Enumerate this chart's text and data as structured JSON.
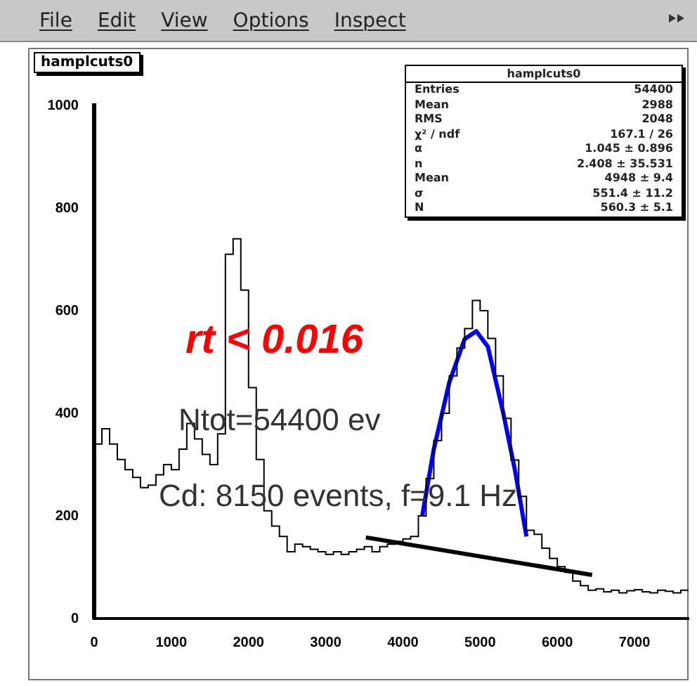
{
  "chart_data": {
    "type": "histogram",
    "title": "hamplcuts0",
    "bins": [
      0,
      100,
      200,
      300,
      400,
      500,
      600,
      700,
      800,
      900,
      1000,
      1100,
      1200,
      1300,
      1400,
      1500,
      1600,
      1700,
      1800,
      1900,
      2000,
      2100,
      2200,
      2300,
      2400,
      2500,
      2600,
      2700,
      2800,
      2900,
      3000,
      3100,
      3200,
      3300,
      3400,
      3500,
      3600,
      3700,
      3800,
      3900,
      4000,
      4100,
      4200,
      4300,
      4400,
      4500,
      4600,
      4700,
      4800,
      4900,
      5000,
      5100,
      5200,
      5300,
      5400,
      5500,
      5600,
      5700,
      5800,
      5900,
      6000,
      6100,
      6200,
      6300,
      6400,
      6500,
      6600,
      6700,
      6800,
      6900,
      7000,
      7100,
      7200,
      7300,
      7400,
      7500,
      7600,
      7700
    ],
    "values": [
      340,
      370,
      340,
      310,
      290,
      275,
      255,
      260,
      280,
      300,
      290,
      330,
      380,
      350,
      320,
      300,
      360,
      710,
      740,
      640,
      450,
      310,
      210,
      180,
      160,
      130,
      145,
      140,
      135,
      130,
      125,
      130,
      125,
      130,
      135,
      140,
      130,
      140,
      145,
      150,
      155,
      160,
      200,
      273,
      347,
      400,
      473,
      527,
      565,
      620,
      600,
      546,
      473,
      390,
      309,
      238,
      172,
      164,
      137,
      117,
      101,
      90,
      73,
      64,
      55,
      58,
      52,
      55,
      50,
      54,
      56,
      52,
      50,
      55,
      53,
      50,
      55
    ],
    "color": "#000000",
    "series": [
      {
        "type": "line",
        "color": "#0000ff",
        "x": [
          4250,
          4400,
          4600,
          4800,
          4950,
          5100,
          5300,
          5450,
          5600
        ],
        "values": [
          200,
          330,
          460,
          545,
          560,
          530,
          400,
          290,
          160
        ]
      },
      {
        "type": "line",
        "color": "#000000",
        "x": [
          3520,
          6450
        ],
        "values": [
          158,
          85
        ]
      }
    ],
    "xlim": [
      0,
      7700
    ],
    "ylim": [
      0,
      1000
    ],
    "xticks": [
      0,
      1000,
      2000,
      3000,
      4000,
      5000,
      6000,
      7000
    ],
    "yticks": [
      0,
      200,
      400,
      600,
      800,
      1000
    ],
    "grid": false,
    "legend": false,
    "line_style": "solid",
    "marker": "none",
    "annotations": [
      "File",
      "Edit",
      "View",
      "Options",
      "Inspect",
      "rt < 0.016",
      "Ntot=54400 ev",
      "Cd: 8150 events, f=9.1 Hz",
      "Entries  54400",
      "Mean  2988",
      "RMS  2048",
      "χ² / ndf  167.1 / 26",
      "α  1.045 ± 0.896",
      "n  2.408 ± 35.531",
      "Mean  4948 ± 9.4",
      "σ  551.4 ± 11.2",
      "N  560.3 ± 5.1"
    ]
  }
}
